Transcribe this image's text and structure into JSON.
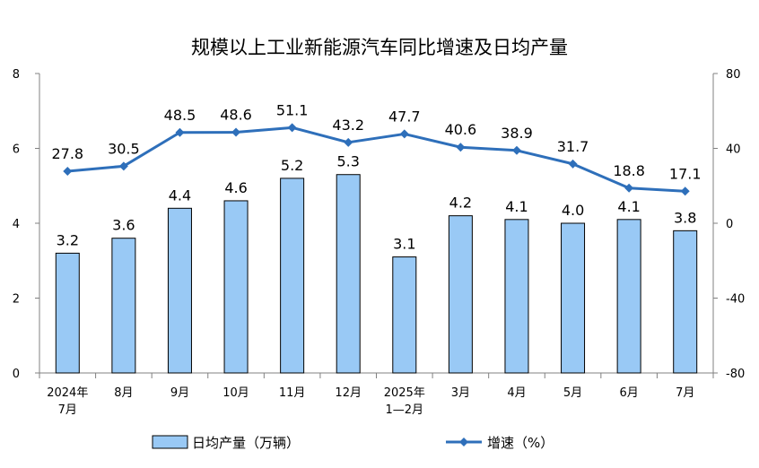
{
  "chart_data": {
    "type": "bar+line",
    "title": "规模以上工业新能源汽车同比增速及日均产量",
    "categories": [
      [
        "2024年",
        "7月"
      ],
      [
        "8月"
      ],
      [
        "9月"
      ],
      [
        "10月"
      ],
      [
        "11月"
      ],
      [
        "12月"
      ],
      [
        "2025年",
        "1—2月"
      ],
      [
        "3月"
      ],
      [
        "4月"
      ],
      [
        "5月"
      ],
      [
        "6月"
      ],
      [
        "7月"
      ]
    ],
    "series": [
      {
        "name": "日均产量（万辆）",
        "type": "bar",
        "axis": "left",
        "color": "#99c9f5",
        "values": [
          3.2,
          3.6,
          4.4,
          4.6,
          5.2,
          5.3,
          3.1,
          4.2,
          4.1,
          4.0,
          4.1,
          3.8
        ],
        "labels": [
          "3.2",
          "3.6",
          "4.4",
          "4.6",
          "5.2",
          "5.3",
          "3.1",
          "4.2",
          "4.1",
          "4.0",
          "4.1",
          "3.8"
        ]
      },
      {
        "name": "增速（%）",
        "type": "line",
        "axis": "right",
        "color": "#2e6fba",
        "values": [
          27.8,
          30.5,
          48.5,
          48.6,
          51.1,
          43.2,
          47.7,
          40.6,
          38.9,
          31.7,
          18.8,
          17.1
        ],
        "labels": [
          "27.8",
          "30.5",
          "48.5",
          "48.6",
          "51.1",
          "43.2",
          "47.7",
          "40.6",
          "38.9",
          "31.7",
          "18.8",
          "17.1"
        ]
      }
    ],
    "y_left": {
      "ylim": [
        0,
        8
      ],
      "ticks": [
        "0",
        "2",
        "4",
        "6",
        "8"
      ]
    },
    "y_right": {
      "ylim": [
        -80,
        80
      ],
      "ticks": [
        "-80",
        "-40",
        "0",
        "40",
        "80"
      ]
    },
    "grid": false,
    "legend": "bottom"
  }
}
